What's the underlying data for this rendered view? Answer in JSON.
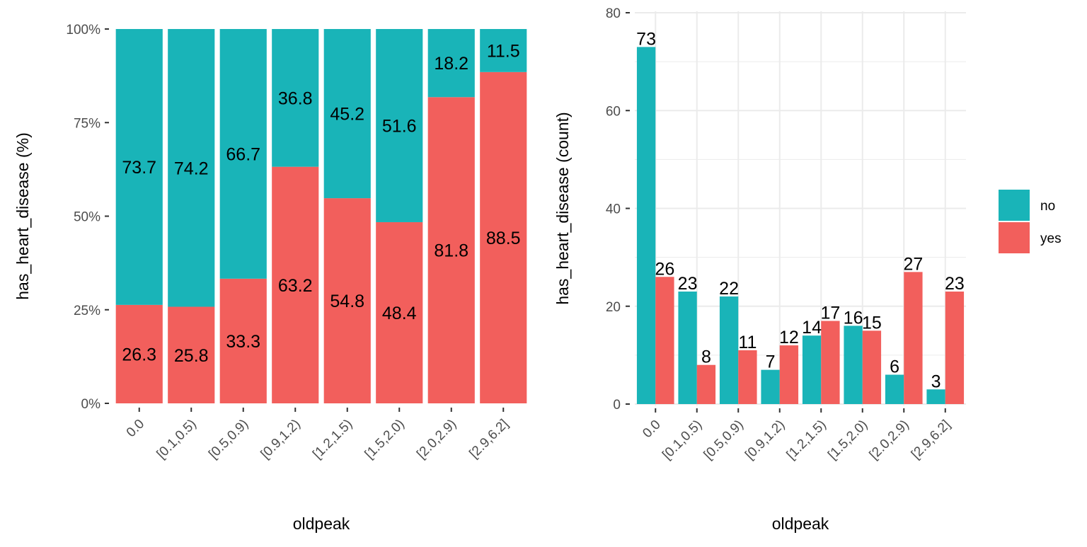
{
  "colors": {
    "no": "#19B4B8",
    "yes": "#F25F5C",
    "grid": "#EBEBEB",
    "tick": "#333333"
  },
  "legend": {
    "items": [
      {
        "key": "no",
        "label": "no"
      },
      {
        "key": "yes",
        "label": "yes"
      }
    ]
  },
  "chart_data": [
    {
      "type": "bar",
      "stacked": true,
      "categories": [
        "0.0",
        "[0.1,0.5)",
        "[0.5,0.9)",
        "[0.9,1.2)",
        "[1.2,1.5)",
        "[1.5,2.0)",
        "[2.0,2.9)",
        "[2.9,6.2]"
      ],
      "series": [
        {
          "name": "no",
          "values": [
            73.7,
            74.2,
            66.7,
            36.8,
            45.2,
            51.6,
            18.2,
            11.5
          ]
        },
        {
          "name": "yes",
          "values": [
            26.3,
            25.8,
            33.3,
            63.2,
            54.8,
            48.4,
            81.8,
            88.5
          ]
        }
      ],
      "xlabel": "oldpeak",
      "ylabel": "has_heart_disease  (%)",
      "ylim": [
        0,
        100
      ],
      "yticks": [
        0,
        25,
        50,
        75,
        100
      ],
      "ytick_labels": [
        "0%",
        "25%",
        "50%",
        "75%",
        "100%"
      ],
      "grid": false
    },
    {
      "type": "bar",
      "grouped": true,
      "categories": [
        "0.0",
        "[0.1,0.5)",
        "[0.5,0.9)",
        "[0.9,1.2)",
        "[1.2,1.5)",
        "[1.5,2.0)",
        "[2.0,2.9)",
        "[2.9,6.2]"
      ],
      "series": [
        {
          "name": "no",
          "values": [
            73,
            23,
            22,
            7,
            14,
            16,
            6,
            3
          ]
        },
        {
          "name": "yes",
          "values": [
            26,
            8,
            11,
            12,
            17,
            15,
            27,
            23
          ]
        }
      ],
      "xlabel": "oldpeak",
      "ylabel": "has_heart_disease  (count)",
      "ylim": [
        0,
        80
      ],
      "yticks": [
        0,
        20,
        40,
        60,
        80
      ],
      "ytick_labels": [
        "0",
        "20",
        "40",
        "60",
        "80"
      ],
      "grid": true,
      "legend_position": "right"
    }
  ]
}
